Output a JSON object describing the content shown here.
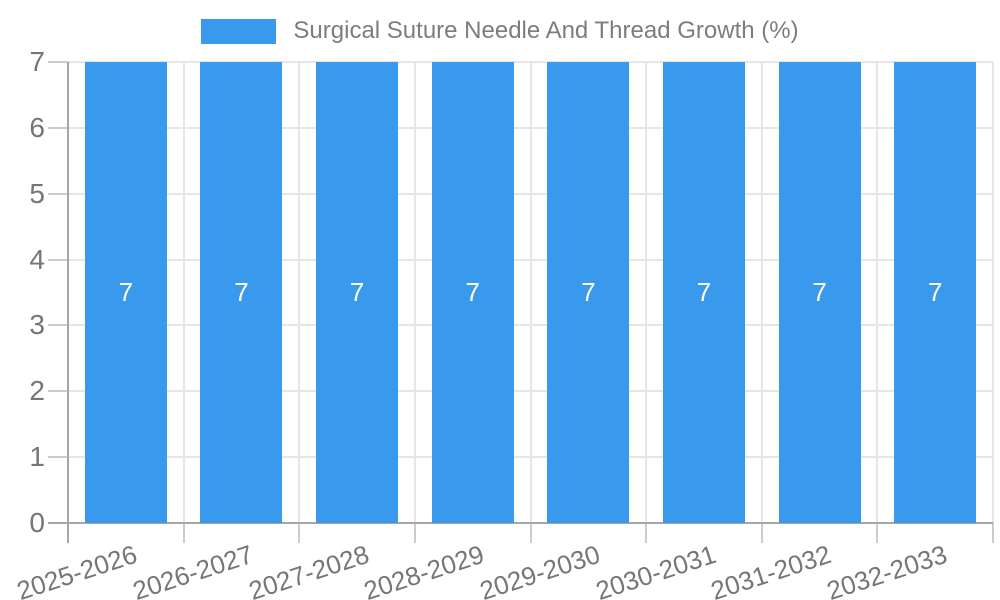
{
  "legend": {
    "label": "Surgical Suture Needle And Thread Growth (%)"
  },
  "chart_data": {
    "type": "bar",
    "title": "Surgical Suture Needle And Thread Growth (%)",
    "categories": [
      "2025-2026",
      "2026-2027",
      "2027-2028",
      "2028-2029",
      "2029-2030",
      "2030-2031",
      "2031-2032",
      "2032-2033"
    ],
    "series": [
      {
        "name": "Surgical Suture Needle And Thread Growth (%)",
        "values": [
          7,
          7,
          7,
          7,
          7,
          7,
          7,
          7
        ]
      }
    ],
    "xlabel": "",
    "ylabel": "",
    "ylim": [
      0,
      7
    ],
    "yticks": [
      0,
      1,
      2,
      3,
      4,
      5,
      6,
      7
    ],
    "grid": true,
    "legend_position": "top-center",
    "bar_labels_shown": true,
    "style": {
      "bar_color": "#3999EC",
      "bar_label_color": "#FFFFFF",
      "grid_color": "#E6E6E6",
      "tick_color": "#CCCCCC",
      "axis_color": "#A6A6A6",
      "text_color": "#767676",
      "legend_text_color": "#7D7D7D",
      "background_color": "#FFFFFF"
    }
  }
}
